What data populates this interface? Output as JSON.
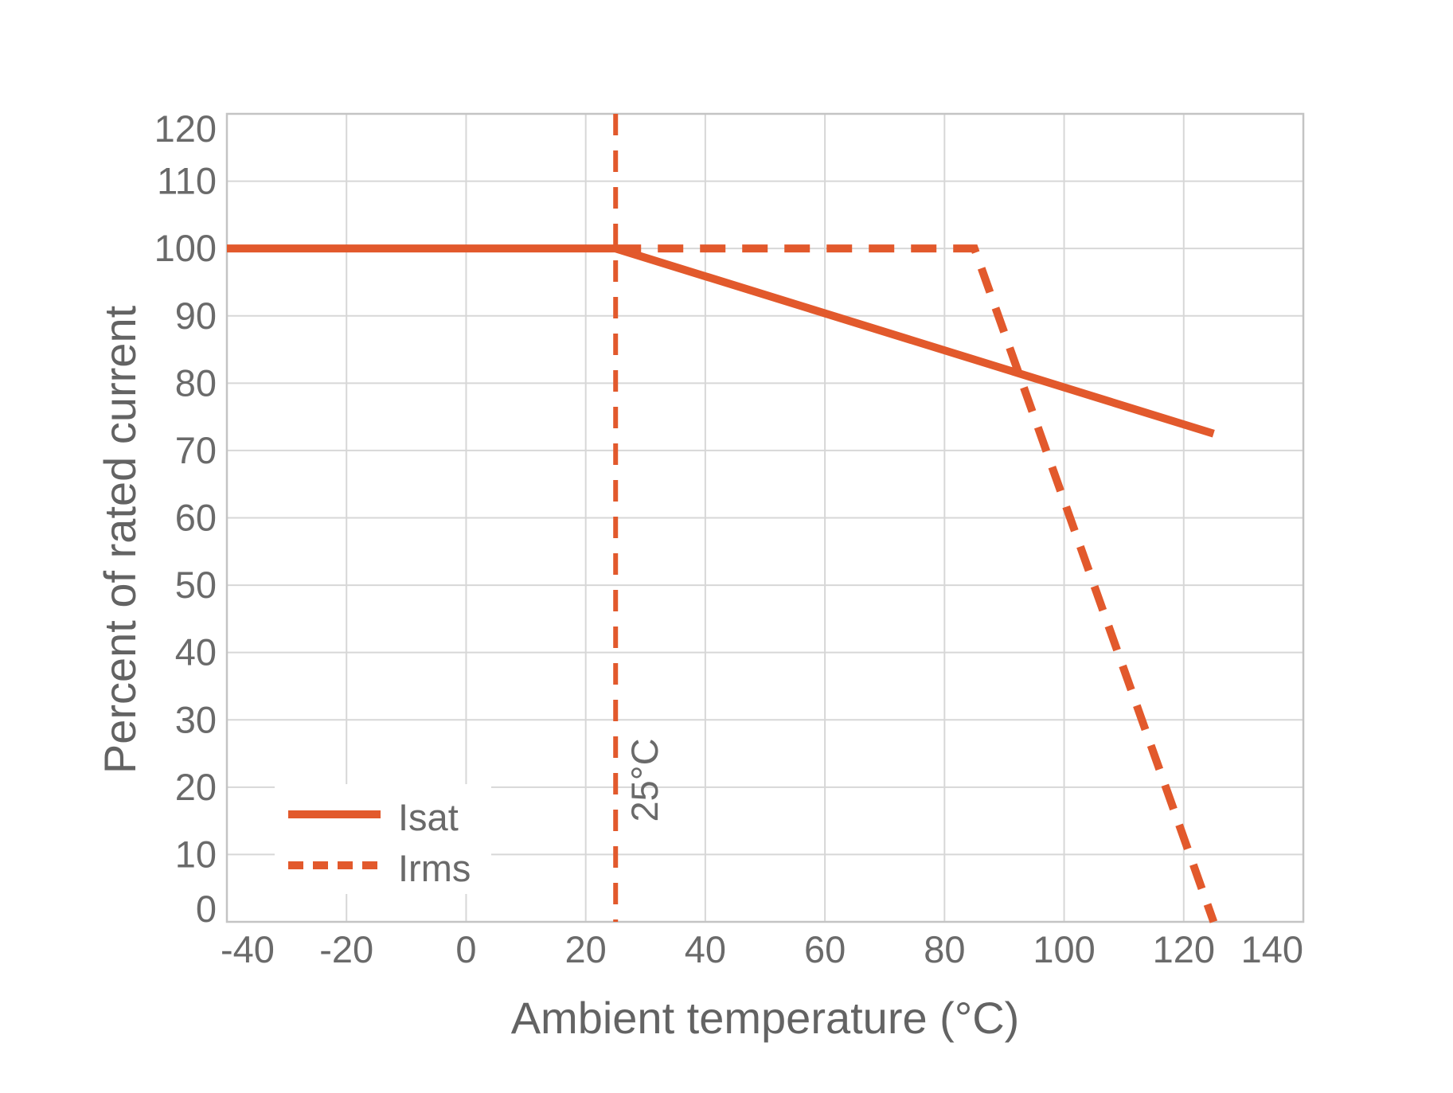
{
  "chart_data": {
    "type": "line",
    "title": "",
    "xlabel": "Ambient temperature (°C)",
    "ylabel": "Percent of rated current",
    "xlim": [
      -40,
      140
    ],
    "ylim": [
      0,
      120
    ],
    "x_ticks": [
      -40,
      -20,
      0,
      20,
      40,
      60,
      80,
      100,
      120,
      140
    ],
    "y_ticks": [
      0,
      10,
      20,
      30,
      40,
      50,
      60,
      70,
      80,
      90,
      100,
      110,
      120
    ],
    "grid": true,
    "legend_position": "bottom-left",
    "series": [
      {
        "name": "Isat",
        "line_style": "solid",
        "points": [
          [
            -40,
            100
          ],
          [
            25,
            100
          ],
          [
            125,
            72.5
          ]
        ]
      },
      {
        "name": "Irms",
        "line_style": "dashed",
        "points": [
          [
            25,
            100
          ],
          [
            85,
            100
          ],
          [
            125,
            0
          ]
        ]
      }
    ],
    "reference_line": {
      "x": 25,
      "label": "25°C",
      "line_style": "dashed"
    }
  },
  "colors": {
    "series_orange": "#E2592C",
    "text_gray": "#6A6A6A",
    "grid_gray": "#D7D7D7",
    "border_gray": "#C4C4C4",
    "background": "#FFFFFF"
  }
}
